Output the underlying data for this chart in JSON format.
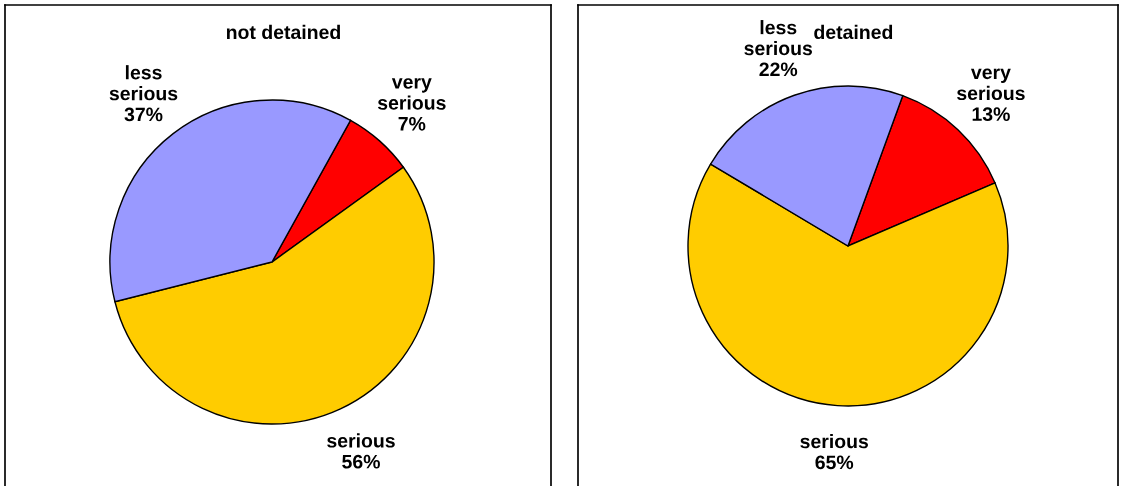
{
  "chart_data": [
    {
      "type": "pie",
      "title": "not detained",
      "categories": [
        "very\nserious",
        "serious",
        "less\nserious"
      ],
      "values": [
        7,
        56,
        37
      ],
      "colors": [
        "#ff0000",
        "#ffcc00",
        "#9999ff"
      ],
      "value_labels": [
        "7%",
        "56%",
        "37%"
      ]
    },
    {
      "type": "pie",
      "title": "detained",
      "categories": [
        "very\nserious",
        "serious",
        "less\nserious"
      ],
      "values": [
        13,
        65,
        22
      ],
      "colors": [
        "#ff0000",
        "#ffcc00",
        "#9999ff"
      ],
      "value_labels": [
        "13%",
        "65%",
        "22%"
      ]
    }
  ]
}
